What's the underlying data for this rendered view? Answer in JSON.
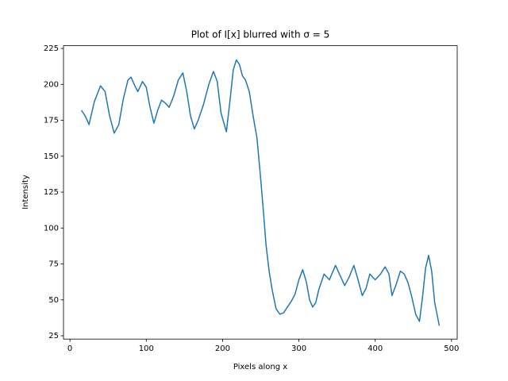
{
  "chart_data": {
    "type": "line",
    "title": "Plot of I[x] blurred with σ = 5",
    "x_label": "Pixels along x",
    "y_label": "Intensity",
    "x": [
      15,
      20,
      25,
      32,
      40,
      46,
      52,
      58,
      64,
      70,
      76,
      80,
      85,
      89,
      95,
      100,
      105,
      110,
      115,
      120,
      125,
      130,
      136,
      142,
      148,
      153,
      158,
      163,
      168,
      175,
      182,
      188,
      193,
      198,
      205,
      210,
      214,
      218,
      222,
      226,
      230,
      235,
      240,
      245,
      249,
      253,
      257,
      261,
      265,
      270,
      275,
      280,
      285,
      290,
      295,
      300,
      305,
      310,
      314,
      318,
      322,
      326,
      333,
      340,
      348,
      354,
      360,
      366,
      372,
      377,
      383,
      388,
      393,
      400,
      407,
      413,
      418,
      422,
      427,
      433,
      438,
      443,
      448,
      453,
      458,
      462,
      466,
      470,
      474,
      478,
      484
    ],
    "series": [
      {
        "color": "#1f77b4",
        "values": [
          182,
          178,
          172,
          188,
          199,
          195,
          178,
          166,
          172,
          190,
          203,
          205,
          199,
          195,
          202,
          198,
          184,
          173,
          182,
          189,
          187,
          184,
          192,
          203,
          208,
          195,
          178,
          169,
          175,
          186,
          200,
          209,
          202,
          180,
          167,
          190,
          210,
          217,
          214,
          206,
          203,
          195,
          178,
          163,
          140,
          115,
          88,
          70,
          57,
          44,
          40,
          41,
          45,
          49,
          54,
          64,
          71,
          62,
          50,
          45,
          48,
          57,
          68,
          64,
          74,
          67,
          60,
          66,
          74,
          65,
          53,
          58,
          68,
          64,
          68,
          73,
          68,
          53,
          60,
          70,
          68,
          62,
          52,
          40,
          35,
          52,
          72,
          81,
          70,
          48,
          32
        ]
      }
    ],
    "xlim": [
      -8.45,
      507.45
    ],
    "ylim": [
      22.7,
      226.9
    ],
    "xticks": [
      0,
      100,
      200,
      300,
      400,
      500
    ],
    "yticks": [
      25,
      50,
      75,
      100,
      125,
      150,
      175,
      200,
      225
    ]
  }
}
